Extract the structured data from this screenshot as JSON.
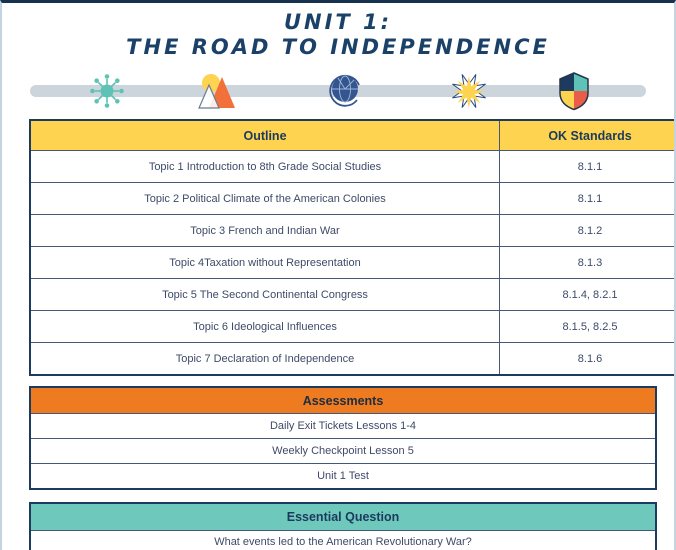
{
  "page": {
    "title_line1": "UNIT 1:",
    "title_line2": "THE ROAD TO INDEPENDENCE"
  },
  "timeline": {
    "icons": [
      "sputnik-icon",
      "mountain-sun-icon",
      "globe-icon",
      "starburst-icon",
      "shield-icon"
    ]
  },
  "outline_table": {
    "headers": [
      "Outline",
      "OK Standards"
    ],
    "rows": [
      {
        "topic": "Topic 1 Introduction to 8th Grade Social Studies",
        "standard": "8.1.1"
      },
      {
        "topic": "Topic 2 Political Climate of the American Colonies",
        "standard": "8.1.1"
      },
      {
        "topic": "Topic 3 French and Indian War",
        "standard": "8.1.2"
      },
      {
        "topic": "Topic 4Taxation without Representation",
        "standard": "8.1.3"
      },
      {
        "topic": "Topic 5 The Second Continental Congress",
        "standard": "8.1.4, 8.2.1"
      },
      {
        "topic": "Topic 6 Ideological Influences",
        "standard": "8.1.5, 8.2.5"
      },
      {
        "topic": "Topic 7 Declaration of Independence",
        "standard": "8.1.6"
      }
    ]
  },
  "assessments": {
    "header": "Assessments",
    "items": [
      "Daily Exit Tickets Lessons 1-4",
      "Weekly Checkpoint Lesson 5",
      "Unit 1 Test"
    ]
  },
  "essential_question": {
    "header": "Essential Question",
    "question": "What events led to the American Revolutionary War?"
  },
  "colors": {
    "navy": "#1d3b5f",
    "yellow": "#fdd34f",
    "orange": "#ef7b21",
    "teal": "#6ec9bc",
    "red_orange": "#e95c48",
    "timeline_bar": "#ccd5dc"
  }
}
